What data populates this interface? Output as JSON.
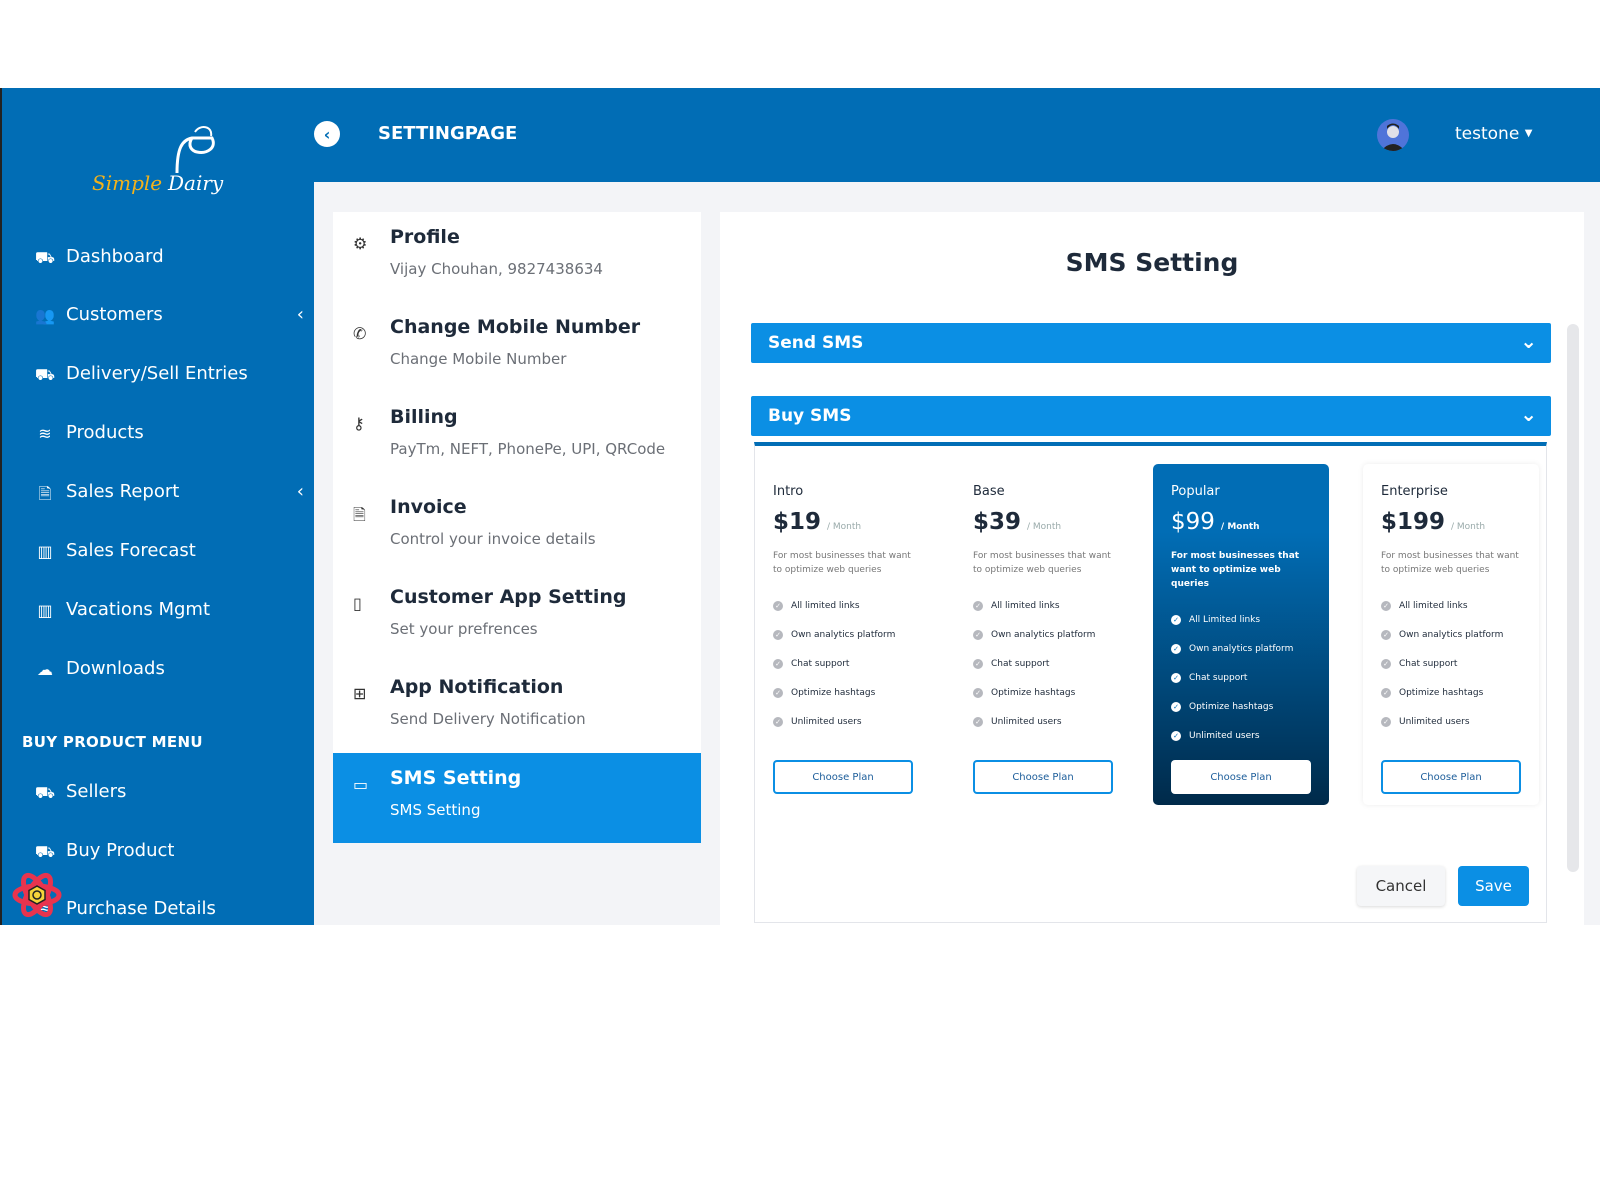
{
  "brand": {
    "logo_text_1": "Simple",
    "logo_text_2": "Dairy"
  },
  "header": {
    "title": "SETTINGPAGE",
    "username": "testone"
  },
  "sidebar": {
    "items": [
      {
        "label": "Dashboard",
        "icon": "truck-icon"
      },
      {
        "label": "Customers",
        "icon": "users-icon",
        "chevron": true
      },
      {
        "label": "Delivery/Sell Entries",
        "icon": "truck-icon"
      },
      {
        "label": "Products",
        "icon": "layers-icon"
      },
      {
        "label": "Sales Report",
        "icon": "file-icon",
        "chevron": true
      },
      {
        "label": "Sales Forecast",
        "icon": "chart-icon"
      },
      {
        "label": "Vacations Mgmt",
        "icon": "chart-icon"
      },
      {
        "label": "Downloads",
        "icon": "cloud-download-icon"
      }
    ],
    "section": "BUY PRODUCT MENU",
    "buy_items": [
      {
        "label": "Sellers",
        "icon": "truck-icon"
      },
      {
        "label": "Buy Product",
        "icon": "truck-icon"
      },
      {
        "label": "Purchase Details",
        "icon": "layers-icon"
      }
    ]
  },
  "settings": [
    {
      "title": "Profile",
      "sub": "Vijay Chouhan, 9827438634",
      "icon": "gear-icon"
    },
    {
      "title": "Change Mobile Number",
      "sub": "Change Mobile Number",
      "icon": "phone-icon"
    },
    {
      "title": "Billing",
      "sub": "PayTm, NEFT, PhonePe, UPI, QRCode",
      "icon": "key-icon"
    },
    {
      "title": "Invoice",
      "sub": "Control your invoice details",
      "icon": "document-icon"
    },
    {
      "title": "Customer App Setting",
      "sub": "Set your prefrences",
      "icon": "mobile-icon"
    },
    {
      "title": "App Notification",
      "sub": "Send Delivery Notification",
      "icon": "grid-icon"
    },
    {
      "title": "SMS Setting",
      "sub": "SMS Setting",
      "icon": "message-icon",
      "active": true
    }
  ],
  "sms": {
    "title": "SMS Setting",
    "send_label": "Send SMS",
    "buy_label": "Buy SMS",
    "cancel": "Cancel",
    "save": "Save",
    "plans": [
      {
        "name": "Intro",
        "price": "$19",
        "per": "/ Month",
        "desc": "For most businesses that want to optimize web queries",
        "features": [
          "All limited links",
          "Own analytics platform",
          "Chat support",
          "Optimize hashtags",
          "Unlimited users"
        ],
        "button": "Choose Plan"
      },
      {
        "name": "Base",
        "price": "$39",
        "per": "/ Month",
        "desc": "For most businesses that want to optimize web queries",
        "features": [
          "All limited links",
          "Own analytics platform",
          "Chat support",
          "Optimize hashtags",
          "Unlimited users"
        ],
        "button": "Choose Plan"
      },
      {
        "name": "Popular",
        "price": "$99",
        "per": "/ Month",
        "desc": "For most businesses that want to optimize web queries",
        "features": [
          "All Limited links",
          "Own analytics platform",
          "Chat support",
          "Optimize hashtags",
          "Unlimited users"
        ],
        "button": "Choose Plan",
        "highlighted": true
      },
      {
        "name": "Enterprise",
        "price": "$199",
        "per": "/ Month",
        "desc": "For most businesses that want to optimize web queries",
        "features": [
          "All limited links",
          "Own analytics platform",
          "Chat support",
          "Optimize hashtags",
          "Unlimited users"
        ],
        "button": "Choose Plan"
      }
    ]
  },
  "colors": {
    "primary": "#016db5",
    "accent": "#0b8fe4",
    "logo_yellow": "#f2b21c"
  }
}
